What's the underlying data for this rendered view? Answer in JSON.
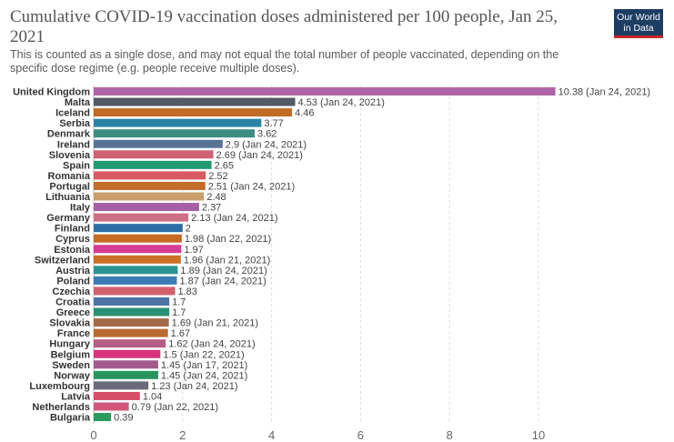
{
  "header": {
    "title": "Cumulative COVID-19 vaccination doses administered per 100 people, Jan 25, 2021",
    "subtitle": "This is counted as a single dose, and may not equal the total number of people vaccinated, depending on the specific dose regime (e.g. people receive multiple doses)."
  },
  "logo": {
    "line1": "Our World",
    "line2": "in Data"
  },
  "chart_data": {
    "type": "bar",
    "orientation": "horizontal",
    "title": "Cumulative COVID-19 vaccination doses administered per 100 people, Jan 25, 2021",
    "xlim": [
      0,
      10.38
    ],
    "xticks": [
      0,
      2,
      4,
      6,
      8,
      10
    ],
    "grid": true,
    "items": [
      {
        "label": "United Kingdom",
        "value": 10.38,
        "value_label": "10.38 (Jan 24, 2021)",
        "color": "#b065a8"
      },
      {
        "label": "Malta",
        "value": 4.53,
        "value_label": "4.53 (Jan 24, 2021)",
        "color": "#545a66"
      },
      {
        "label": "Iceland",
        "value": 4.46,
        "value_label": "4.46",
        "color": "#c06a23"
      },
      {
        "label": "Serbia",
        "value": 3.77,
        "value_label": "3.77",
        "color": "#2b84a6"
      },
      {
        "label": "Denmark",
        "value": 3.62,
        "value_label": "3.62",
        "color": "#3e8b82"
      },
      {
        "label": "Ireland",
        "value": 2.9,
        "value_label": "2.9 (Jan 24, 2021)",
        "color": "#5a7496"
      },
      {
        "label": "Slovenia",
        "value": 2.69,
        "value_label": "2.69 (Jan 24, 2021)",
        "color": "#cf6174"
      },
      {
        "label": "Spain",
        "value": 2.65,
        "value_label": "2.65",
        "color": "#1f9a71"
      },
      {
        "label": "Romania",
        "value": 2.52,
        "value_label": "2.52",
        "color": "#d85a61"
      },
      {
        "label": "Portugal",
        "value": 2.51,
        "value_label": "2.51 (Jan 24, 2021)",
        "color": "#c46d2a"
      },
      {
        "label": "Lithuania",
        "value": 2.48,
        "value_label": "2.48",
        "color": "#c9a06d"
      },
      {
        "label": "Italy",
        "value": 2.37,
        "value_label": "2.37",
        "color": "#a55fa5"
      },
      {
        "label": "Germany",
        "value": 2.13,
        "value_label": "2.13 (Jan 24, 2021)",
        "color": "#cf6f86"
      },
      {
        "label": "Finland",
        "value": 2,
        "value_label": "2",
        "color": "#2c6fa8"
      },
      {
        "label": "Cyprus",
        "value": 1.98,
        "value_label": "1.98 (Jan 22, 2021)",
        "color": "#c76b24"
      },
      {
        "label": "Estonia",
        "value": 1.97,
        "value_label": "1.97",
        "color": "#d63c93"
      },
      {
        "label": "Switzerland",
        "value": 1.96,
        "value_label": "1.96 (Jan 21, 2021)",
        "color": "#c9702a"
      },
      {
        "label": "Austria",
        "value": 1.89,
        "value_label": "1.89 (Jan 24, 2021)",
        "color": "#2b9393"
      },
      {
        "label": "Poland",
        "value": 1.87,
        "value_label": "1.87 (Jan 24, 2021)",
        "color": "#3b7cb7"
      },
      {
        "label": "Czechia",
        "value": 1.83,
        "value_label": "1.83",
        "color": "#d45f6d"
      },
      {
        "label": "Croatia",
        "value": 1.7,
        "value_label": "1.7",
        "color": "#4e73a5"
      },
      {
        "label": "Greece",
        "value": 1.7,
        "value_label": "1.7",
        "color": "#2a9273"
      },
      {
        "label": "Slovakia",
        "value": 1.69,
        "value_label": "1.69 (Jan 21, 2021)",
        "color": "#a56a4a"
      },
      {
        "label": "France",
        "value": 1.67,
        "value_label": "1.67",
        "color": "#b86a2f"
      },
      {
        "label": "Hungary",
        "value": 1.62,
        "value_label": "1.62 (Jan 24, 2021)",
        "color": "#b55e86"
      },
      {
        "label": "Belgium",
        "value": 1.5,
        "value_label": "1.5 (Jan 22, 2021)",
        "color": "#d8347d"
      },
      {
        "label": "Sweden",
        "value": 1.45,
        "value_label": "1.45 (Jan 17, 2021)",
        "color": "#a05b8c"
      },
      {
        "label": "Norway",
        "value": 1.45,
        "value_label": "1.45 (Jan 24, 2021)",
        "color": "#2a9460"
      },
      {
        "label": "Luxembourg",
        "value": 1.23,
        "value_label": "1.23 (Jan 24, 2021)",
        "color": "#6a6a78"
      },
      {
        "label": "Latvia",
        "value": 1.04,
        "value_label": "1.04",
        "color": "#d64f68"
      },
      {
        "label": "Netherlands",
        "value": 0.79,
        "value_label": "0.79 (Jan 22, 2021)",
        "color": "#d2577a"
      },
      {
        "label": "Bulgaria",
        "value": 0.39,
        "value_label": "0.39",
        "color": "#2a9a5e"
      }
    ]
  }
}
